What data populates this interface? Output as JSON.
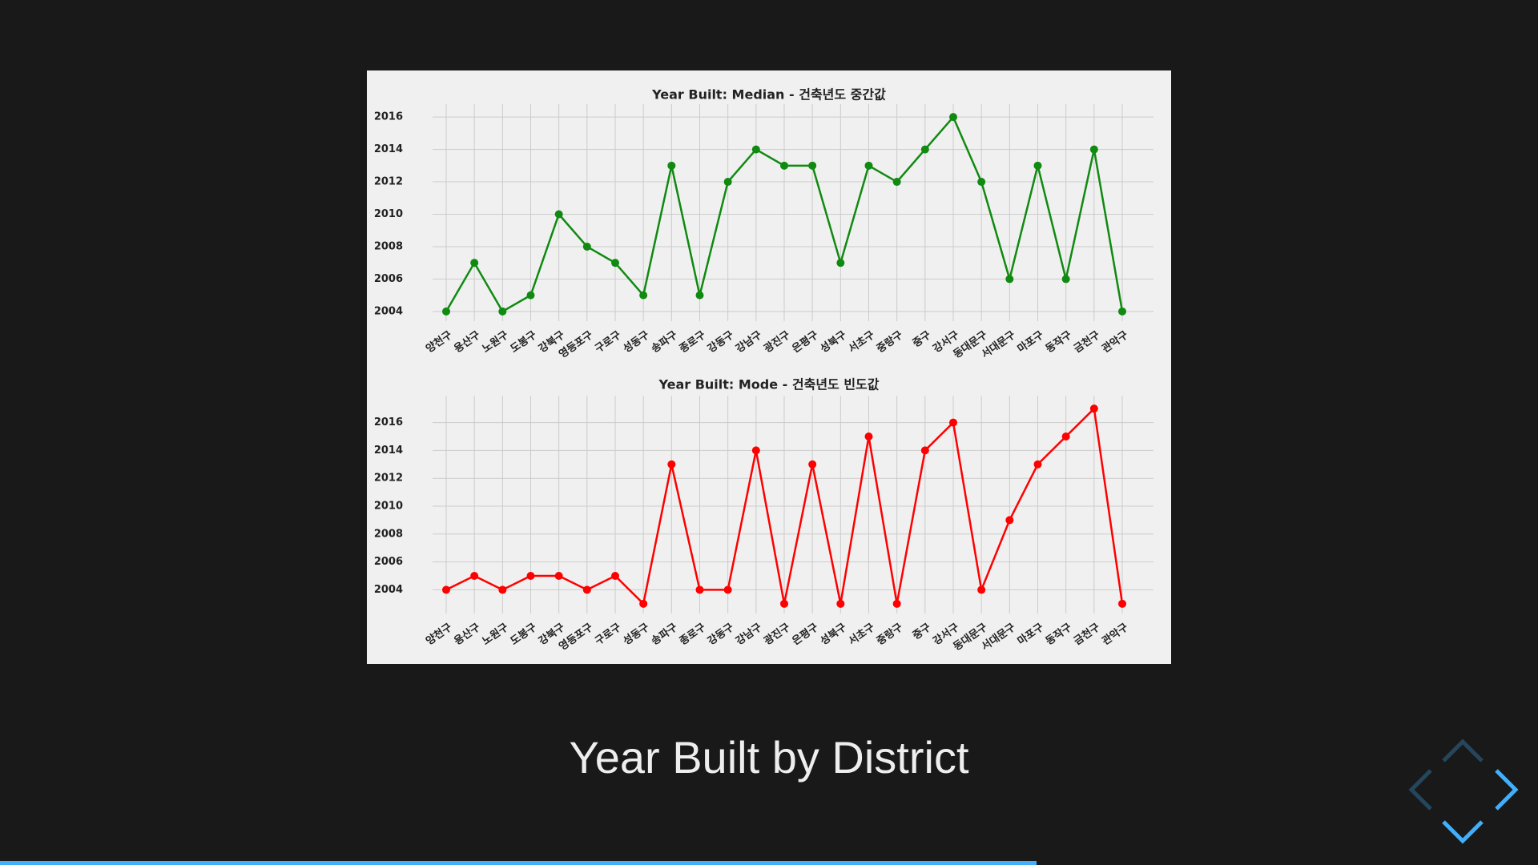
{
  "chart_data": [
    {
      "type": "line",
      "title": "Year Built: Median - 건축년도 중간값",
      "categories": [
        "양천구",
        "용산구",
        "노원구",
        "도봉구",
        "강북구",
        "영등포구",
        "구로구",
        "성동구",
        "송파구",
        "종로구",
        "강동구",
        "강남구",
        "광진구",
        "은평구",
        "성북구",
        "서초구",
        "중랑구",
        "중구",
        "강서구",
        "동대문구",
        "서대문구",
        "마포구",
        "동작구",
        "금천구",
        "관악구"
      ],
      "values": [
        2004,
        2007,
        2004,
        2005,
        2010,
        2008,
        2007,
        2005,
        2013,
        2005,
        2012,
        2014,
        2013,
        2013,
        2007,
        2013,
        2012,
        2014,
        2016,
        2012,
        2006,
        2013,
        2006,
        2014,
        2004
      ],
      "color": "#108a10",
      "ylim": [
        2003.4,
        2016.6
      ],
      "yticks": [
        2004,
        2006,
        2008,
        2010,
        2012,
        2014,
        2016
      ],
      "grid": true
    },
    {
      "type": "line",
      "title": "Year Built: Mode - 건축년도 빈도값",
      "categories": [
        "양천구",
        "용산구",
        "노원구",
        "도봉구",
        "강북구",
        "영등포구",
        "구로구",
        "성동구",
        "송파구",
        "종로구",
        "강동구",
        "강남구",
        "광진구",
        "은평구",
        "성북구",
        "서초구",
        "중랑구",
        "중구",
        "강서구",
        "동대문구",
        "서대문구",
        "마포구",
        "동작구",
        "금천구",
        "관악구"
      ],
      "values": [
        2004,
        2005,
        2004,
        2005,
        2005,
        2004,
        2005,
        2003,
        2013,
        2004,
        2004,
        2014,
        2003,
        2013,
        2003,
        2015,
        2003,
        2014,
        2016,
        2004,
        2009,
        2013,
        2015,
        2017,
        2003
      ],
      "color": "#ff0000",
      "ylim": [
        2002.3,
        2017.7
      ],
      "yticks": [
        2004,
        2006,
        2008,
        2010,
        2012,
        2014,
        2016
      ],
      "grid": true
    }
  ],
  "slide": {
    "caption": "Year Built by District"
  }
}
